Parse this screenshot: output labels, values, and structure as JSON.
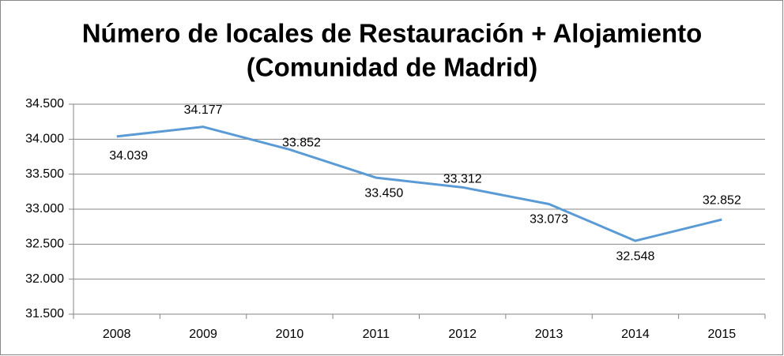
{
  "chart_data": {
    "type": "line",
    "title": [
      "Número de locales de Restauración + Alojamiento",
      "(Comunidad de Madrid)"
    ],
    "categories": [
      "2008",
      "2009",
      "2010",
      "2011",
      "2012",
      "2013",
      "2014",
      "2015"
    ],
    "values": [
      34039,
      34177,
      33852,
      33450,
      33312,
      33073,
      32548,
      32852
    ],
    "value_labels": [
      "34.039",
      "34.177",
      "33.852",
      "33.450",
      "33.312",
      "33.073",
      "32.548",
      "32.852"
    ],
    "color": "#5b9bd5",
    "ylim": [
      31500,
      34500
    ],
    "yticks": [
      {
        "value": 31500,
        "label": "31.500"
      },
      {
        "value": 32000,
        "label": "32.000"
      },
      {
        "value": 32500,
        "label": "32.500"
      },
      {
        "value": 33000,
        "label": "33.000"
      },
      {
        "value": 33500,
        "label": "33.500"
      },
      {
        "value": 34000,
        "label": "34.000"
      },
      {
        "value": 34500,
        "label": "34.500"
      }
    ],
    "grid": true
  }
}
